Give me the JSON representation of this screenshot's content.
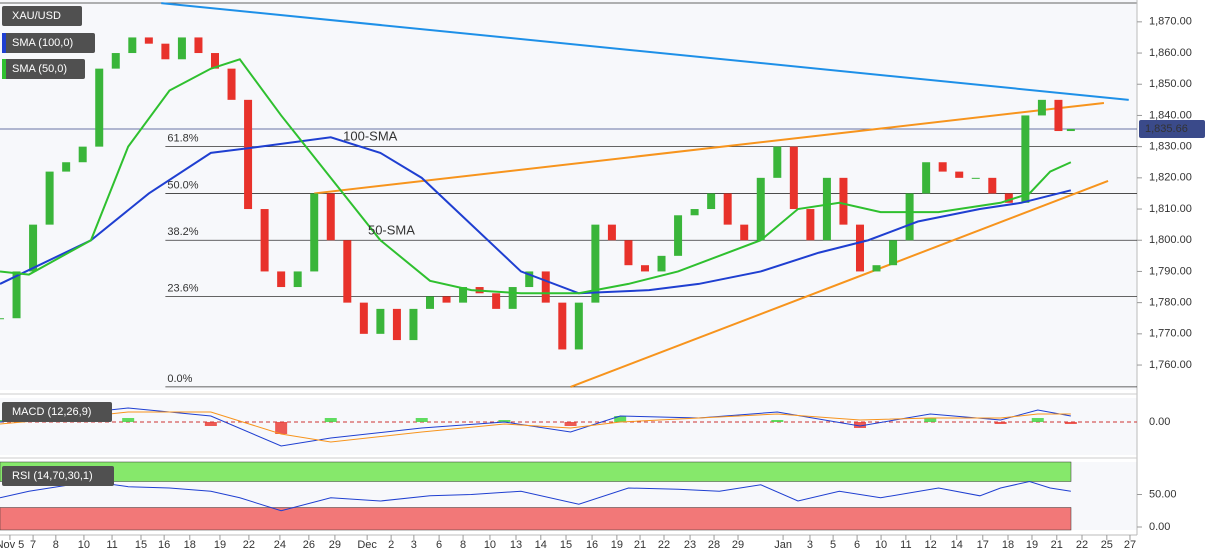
{
  "chart_data": {
    "type": "candlestick",
    "title": "XAU/USD",
    "xlim": [
      0,
      275
    ],
    "xticks": [
      {
        "value": 2.4,
        "label": "Nov 5"
      },
      {
        "value": 8,
        "label": "7"
      },
      {
        "value": 13.5,
        "label": "8"
      },
      {
        "value": 20.3,
        "label": "10"
      },
      {
        "value": 27.1,
        "label": "11"
      },
      {
        "value": 34.1,
        "label": "15"
      },
      {
        "value": 39.7,
        "label": "16"
      },
      {
        "value": 45.9,
        "label": "18"
      },
      {
        "value": 53.2,
        "label": "19"
      },
      {
        "value": 60.2,
        "label": "22"
      },
      {
        "value": 67.7,
        "label": "24"
      },
      {
        "value": 74.7,
        "label": "26"
      },
      {
        "value": 81,
        "label": "29"
      },
      {
        "value": 88.8,
        "label": "Dec"
      },
      {
        "value": 94.6,
        "label": "2"
      },
      {
        "value": 100.1,
        "label": "3"
      },
      {
        "value": 106.2,
        "label": "6"
      },
      {
        "value": 112,
        "label": "8"
      },
      {
        "value": 118.5,
        "label": "10"
      },
      {
        "value": 124.8,
        "label": "13"
      },
      {
        "value": 130.8,
        "label": "14"
      },
      {
        "value": 136.9,
        "label": "15"
      },
      {
        "value": 143.2,
        "label": "16"
      },
      {
        "value": 149.2,
        "label": "19"
      },
      {
        "value": 154.8,
        "label": "21"
      },
      {
        "value": 160.6,
        "label": "22"
      },
      {
        "value": 166.9,
        "label": "23"
      },
      {
        "value": 172.7,
        "label": "28"
      },
      {
        "value": 178.5,
        "label": "29"
      },
      {
        "value": 189.4,
        "label": "Jan"
      },
      {
        "value": 195.9,
        "label": "3"
      },
      {
        "value": 201.5,
        "label": "5"
      },
      {
        "value": 207.3,
        "label": "6"
      },
      {
        "value": 213.1,
        "label": "10"
      },
      {
        "value": 219.1,
        "label": "11"
      },
      {
        "value": 225.1,
        "label": "12"
      },
      {
        "value": 231.4,
        "label": "14"
      },
      {
        "value": 237.7,
        "label": "17"
      },
      {
        "value": 243.8,
        "label": "18"
      },
      {
        "value": 249.6,
        "label": "19"
      },
      {
        "value": 255.6,
        "label": "21"
      },
      {
        "value": 261.7,
        "label": "22"
      },
      {
        "value": 267.7,
        "label": "25"
      },
      {
        "value": 273.3,
        "label": "27"
      }
    ],
    "ylim": [
      1752,
      1877
    ],
    "yticks": [
      {
        "value": 1870,
        "label": "1,870.00"
      },
      {
        "value": 1860,
        "label": "1,860.00"
      },
      {
        "value": 1850,
        "label": "1,850.00"
      },
      {
        "value": 1840,
        "label": "1,840.00"
      },
      {
        "value": 1830,
        "label": "1,830.00"
      },
      {
        "value": 1820,
        "label": "1,820.00"
      },
      {
        "value": 1810,
        "label": "1,810.00"
      },
      {
        "value": 1800,
        "label": "1,800.00"
      },
      {
        "value": 1790,
        "label": "1,790.00"
      },
      {
        "value": 1780,
        "label": "1,780.00"
      },
      {
        "value": 1770,
        "label": "1,770.00"
      },
      {
        "value": 1760,
        "label": "1,760.00"
      }
    ],
    "up_color": "#3ab53a",
    "down_color": "#e8322b",
    "price": {
      "x": [
        0,
        4,
        8,
        12,
        16,
        20,
        24,
        28,
        32,
        36,
        40,
        44,
        48,
        52,
        56,
        60,
        64,
        68,
        72,
        76,
        80,
        84,
        88,
        92,
        96,
        100,
        104,
        108,
        112,
        116,
        120,
        124,
        128,
        132,
        136,
        140,
        144,
        148,
        152,
        156,
        160,
        164,
        168,
        172,
        176,
        180,
        184,
        188,
        192,
        196,
        200,
        204,
        208,
        212,
        216,
        220,
        224,
        228,
        232,
        236,
        240,
        244,
        248,
        252,
        256,
        259
      ],
      "close": [
        1775,
        1790,
        1805,
        1822,
        1825,
        1830,
        1855,
        1860,
        1865,
        1863,
        1858,
        1865,
        1860,
        1855,
        1845,
        1810,
        1790,
        1785,
        1790,
        1815,
        1800,
        1780,
        1770,
        1778,
        1768,
        1778,
        1782,
        1780,
        1785,
        1783,
        1778,
        1785,
        1790,
        1780,
        1765,
        1780,
        1805,
        1800,
        1792,
        1790,
        1795,
        1808,
        1810,
        1815,
        1805,
        1800,
        1820,
        1830,
        1810,
        1800,
        1820,
        1805,
        1790,
        1792,
        1800,
        1815,
        1825,
        1822,
        1820,
        1820,
        1815,
        1812,
        1840,
        1845,
        1835,
        1835.66
      ]
    },
    "series": [
      {
        "name": "SMA (100,0)",
        "color": "#1f3fd1",
        "x": [
          0,
          22,
          36,
          51,
          63,
          80,
          92,
          102,
          114,
          126,
          140,
          157,
          169,
          184,
          198,
          210,
          222,
          237,
          247,
          259
        ],
        "values": [
          1786,
          1800,
          1815,
          1828,
          1830,
          1833,
          1828,
          1820,
          1805,
          1790,
          1783,
          1784,
          1786,
          1790,
          1796,
          1800,
          1806,
          1810,
          1812,
          1816
        ]
      },
      {
        "name": "SMA (50,0)",
        "color": "#2fc02f",
        "x": [
          0,
          7,
          22,
          31,
          41,
          51,
          58,
          68,
          80,
          92,
          104,
          114,
          126,
          140,
          152,
          164,
          174,
          184,
          193,
          203,
          213,
          227,
          242,
          249,
          254,
          259
        ],
        "values": [
          1790,
          1789,
          1800,
          1830,
          1848,
          1855,
          1858,
          1840,
          1820,
          1800,
          1787,
          1784,
          1783,
          1783,
          1786,
          1790,
          1795,
          1800,
          1810,
          1812,
          1809,
          1809,
          1812,
          1815,
          1822,
          1825
        ]
      }
    ],
    "trend_lines": [
      {
        "color": "#1e90e8",
        "x": [
          39,
          273
        ],
        "y": [
          1876,
          1845
        ]
      },
      {
        "color": "#f7941d",
        "x": [
          76,
          267
        ],
        "y": [
          1815,
          1844
        ]
      },
      {
        "color": "#f7941d",
        "x": [
          138,
          268
        ],
        "y": [
          1753,
          1819
        ]
      }
    ],
    "fib_levels": [
      {
        "value": 1753,
        "label": "0.0%"
      },
      {
        "value": 1782,
        "label": "23.6%"
      },
      {
        "value": 1800,
        "label": "38.2%"
      },
      {
        "value": 1815,
        "label": "50.0%"
      },
      {
        "value": 1830,
        "label": "61.8%"
      }
    ],
    "fib_start": 40,
    "last_price": {
      "value": 1835.66,
      "label": "1,835.66"
    },
    "annotations": [
      {
        "text": "100-SMA",
        "x": 83,
        "y": 1833,
        "color": "#6b6bd6"
      },
      {
        "text": "50-SMA",
        "x": 89,
        "y": 1803,
        "color": "#2fa82f"
      }
    ],
    "macd": {
      "name": "MACD (12,26,9)",
      "ylim": [
        -16.5,
        12
      ],
      "yticks": [
        {
          "value": 0,
          "label": "0.00"
        }
      ],
      "x": [
        0,
        22,
        31,
        51,
        68,
        80,
        102,
        122,
        138,
        150,
        169,
        188,
        208,
        225,
        242,
        251,
        259
      ],
      "macd": [
        0,
        5,
        7,
        3,
        -12,
        -8,
        -3,
        0,
        -5,
        3,
        2,
        5,
        -2,
        4,
        1,
        6,
        3
      ],
      "signal": [
        -1,
        3,
        5,
        5,
        -6,
        -10,
        -5,
        -1,
        -3,
        0,
        2,
        4,
        1,
        2,
        2,
        4,
        4
      ],
      "histogram": [
        1,
        2,
        2,
        -2,
        -6,
        2,
        2,
        1,
        -2,
        3,
        0,
        1,
        -3,
        2,
        -1,
        2,
        -1
      ],
      "macd_color": "#1f3fd1",
      "signal_color": "#f7941d"
    },
    "rsi": {
      "name": "RSI (14,70,30,1)",
      "ylim": [
        0,
        100
      ],
      "yticks": [
        {
          "value": 50,
          "label": "50.00"
        },
        {
          "value": 0,
          "label": "0.00"
        }
      ],
      "overbought": 70,
      "oversold": 30,
      "color": "#1f3fd1",
      "x": [
        0,
        7,
        22,
        31,
        41,
        51,
        58,
        68,
        80,
        92,
        104,
        114,
        126,
        140,
        152,
        164,
        174,
        184,
        193,
        203,
        213,
        227,
        237,
        242,
        249,
        254,
        259
      ],
      "values": [
        45,
        55,
        70,
        62,
        60,
        55,
        45,
        25,
        45,
        40,
        48,
        50,
        55,
        35,
        60,
        58,
        55,
        65,
        40,
        55,
        45,
        60,
        48,
        60,
        70,
        60,
        55
      ]
    }
  }
}
